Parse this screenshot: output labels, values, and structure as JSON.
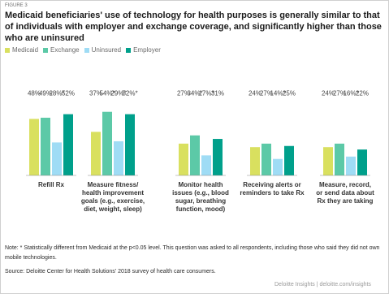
{
  "figure_label": "FIGURE 3",
  "title": "Medicaid beneficiaries' use of technology for health purposes is generally similar to that of individuals with employer and exchange coverage, and significantly higher than those who are uninsured",
  "colors": {
    "Medicaid": "#d9e05f",
    "Exchange": "#5cc9a7",
    "Uninsured": "#9fdcf5",
    "Employer": "#00a08b"
  },
  "chart_data": {
    "type": "bar",
    "series": [
      {
        "name": "Medicaid",
        "values": [
          48,
          37,
          27,
          24,
          24
        ]
      },
      {
        "name": "Exchange",
        "values": [
          49,
          54,
          34,
          27,
          27
        ]
      },
      {
        "name": "Uninsured",
        "values": [
          28,
          29,
          17,
          14,
          16
        ]
      },
      {
        "name": "Employer",
        "values": [
          52,
          52,
          31,
          25,
          22
        ]
      }
    ],
    "categories": [
      "Refill Rx",
      "Measure fitness/ health improvement goals (e.g., exercise, diet, weight, sleep)",
      "Monitor health issues (e.g., blood sugar, breathing function, mood)",
      "Receiving alerts or reminders to take Rx",
      "Measure, record, or send data about Rx they are taking"
    ],
    "category_lines": [
      [
        "Refill Rx"
      ],
      [
        "Measure fitness/",
        "health improvement",
        "goals (e.g., exercise,",
        "diet, weight, sleep)"
      ],
      [
        "Monitor health",
        "issues (e.g., blood",
        "sugar, breathing",
        "function, mood)"
      ],
      [
        "Receiving alerts or",
        "reminders to take Rx"
      ],
      [
        "Measure, record,",
        "or send data about",
        "Rx they are taking"
      ]
    ],
    "labels": [
      [
        "48%",
        "49%",
        "28%*",
        "52%"
      ],
      [
        "37%",
        "54%*",
        "29%*",
        "52%*"
      ],
      [
        "27%",
        "34%*",
        "17%*",
        "31%"
      ],
      [
        "24%",
        "27%",
        "14%*",
        "25%"
      ],
      [
        "24%",
        "27%",
        "16%*",
        "22%"
      ]
    ]
  },
  "note_1": "Note: * Statistically different from Medicaid at the p<0.05 level. This question was asked to all respondents, including those who said they did not own mobile technologies.",
  "source": "Source: Deloitte Center for Health Solutions' 2018 survey of health care consumers.",
  "brand": "Deloitte Insights | deloitte.com/insights"
}
